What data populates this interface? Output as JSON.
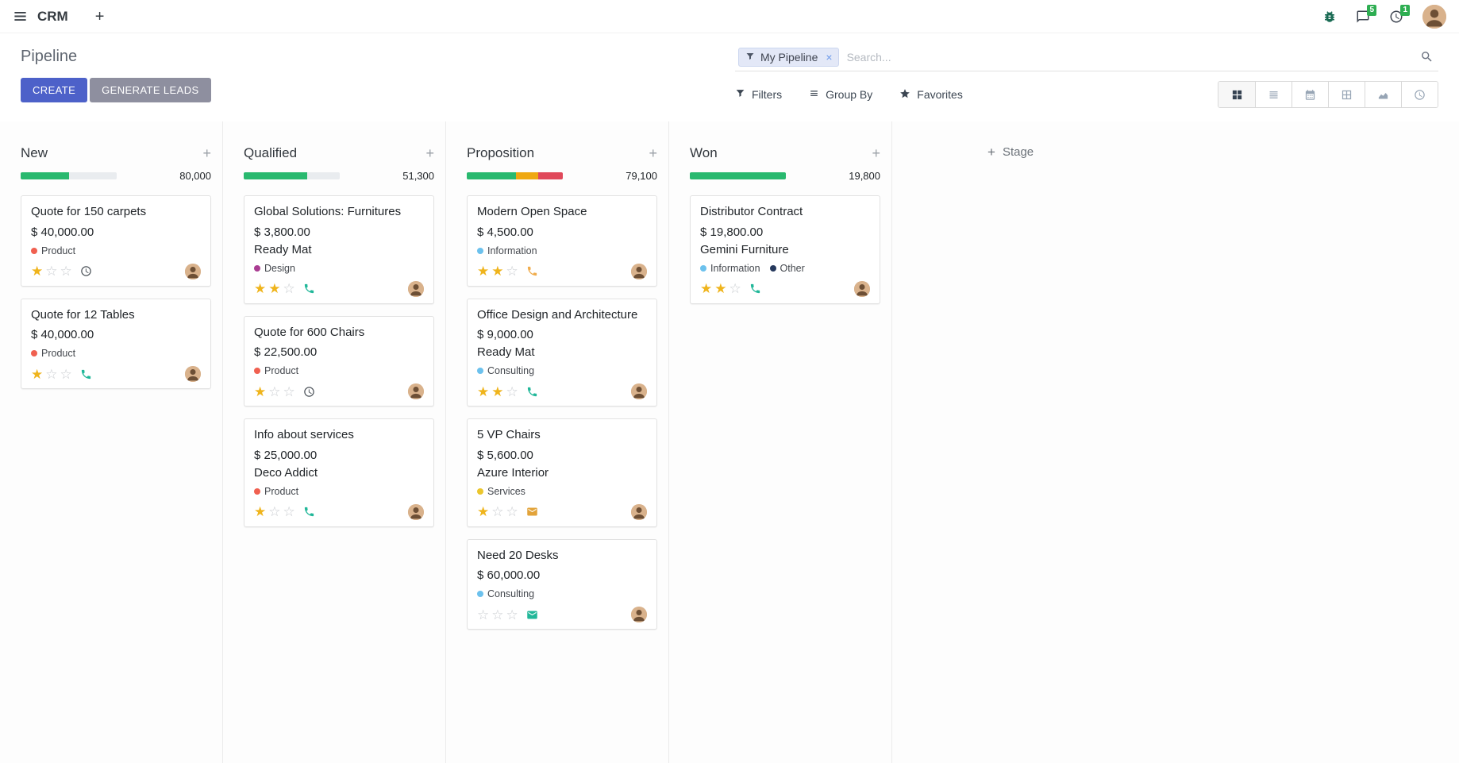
{
  "navbar": {
    "app_name": "CRM",
    "message_badge": "5",
    "activity_badge": "1"
  },
  "control_panel": {
    "title": "Pipeline",
    "create_label": "CREATE",
    "generate_leads_label": "GENERATE LEADS",
    "search": {
      "facet_label": "My Pipeline",
      "placeholder": "Search..."
    },
    "filters_label": "Filters",
    "group_by_label": "Group By",
    "favorites_label": "Favorites"
  },
  "board": {
    "add_stage_label": "Stage",
    "columns": [
      {
        "name": "New",
        "total": "80,000",
        "progress": [
          {
            "color": "#29b96f",
            "pct": 50
          }
        ],
        "cards": [
          {
            "title": "Quote for 150 carpets",
            "amount": "$ 40,000.00",
            "partner": null,
            "tags": [
              {
                "label": "Product",
                "color": "#f06050"
              }
            ],
            "stars": 1,
            "activity": {
              "icon": "clock",
              "color": "#495057"
            }
          },
          {
            "title": "Quote for 12 Tables",
            "amount": "$ 40,000.00",
            "partner": null,
            "tags": [
              {
                "label": "Product",
                "color": "#f06050"
              }
            ],
            "stars": 1,
            "activity": {
              "icon": "phone",
              "color": "#21b799"
            }
          }
        ]
      },
      {
        "name": "Qualified",
        "total": "51,300",
        "progress": [
          {
            "color": "#29b96f",
            "pct": 66
          }
        ],
        "cards": [
          {
            "title": "Global Solutions: Furnitures",
            "amount": "$ 3,800.00",
            "partner": "Ready Mat",
            "tags": [
              {
                "label": "Design",
                "color": "#aa3d92"
              }
            ],
            "stars": 2,
            "activity": {
              "icon": "phone",
              "color": "#21b799"
            }
          },
          {
            "title": "Quote for 600 Chairs",
            "amount": "$ 22,500.00",
            "partner": null,
            "tags": [
              {
                "label": "Product",
                "color": "#f06050"
              }
            ],
            "stars": 1,
            "activity": {
              "icon": "clock",
              "color": "#495057"
            }
          },
          {
            "title": "Info about services",
            "amount": "$ 25,000.00",
            "partner": "Deco Addict",
            "tags": [
              {
                "label": "Product",
                "color": "#f06050"
              }
            ],
            "stars": 1,
            "activity": {
              "icon": "phone",
              "color": "#21b799"
            }
          }
        ]
      },
      {
        "name": "Proposition",
        "total": "79,100",
        "progress": [
          {
            "color": "#29b96f",
            "pct": 51
          },
          {
            "color": "#efa811",
            "pct": 23
          },
          {
            "color": "#e0485a",
            "pct": 26
          }
        ],
        "cards": [
          {
            "title": "Modern Open Space",
            "amount": "$ 4,500.00",
            "partner": null,
            "tags": [
              {
                "label": "Information",
                "color": "#6cc1ed"
              }
            ],
            "stars": 2,
            "activity": {
              "icon": "phone",
              "color": "#f0ad4e"
            }
          },
          {
            "title": "Office Design and Architecture",
            "amount": "$ 9,000.00",
            "partner": "Ready Mat",
            "tags": [
              {
                "label": "Consulting",
                "color": "#6cc1ed"
              }
            ],
            "stars": 2,
            "activity": {
              "icon": "phone",
              "color": "#21b799"
            }
          },
          {
            "title": "5 VP Chairs",
            "amount": "$ 5,600.00",
            "partner": "Azure Interior",
            "tags": [
              {
                "label": "Services",
                "color": "#ebc62d"
              }
            ],
            "stars": 1,
            "activity": {
              "icon": "envelope",
              "color": "#e2a33a"
            }
          },
          {
            "title": "Need 20 Desks",
            "amount": "$ 60,000.00",
            "partner": null,
            "tags": [
              {
                "label": "Consulting",
                "color": "#6cc1ed"
              }
            ],
            "stars": 0,
            "activity": {
              "icon": "envelope",
              "color": "#21b799"
            }
          }
        ]
      },
      {
        "name": "Won",
        "total": "19,800",
        "progress": [
          {
            "color": "#29b96f",
            "pct": 100
          }
        ],
        "cards": [
          {
            "title": "Distributor Contract",
            "amount": "$ 19,800.00",
            "partner": "Gemini Furniture",
            "tags": [
              {
                "label": "Information",
                "color": "#6cc1ed"
              },
              {
                "label": "Other",
                "color": "#25385c"
              }
            ],
            "stars": 2,
            "activity": {
              "icon": "phone",
              "color": "#21b799"
            }
          }
        ]
      }
    ]
  }
}
